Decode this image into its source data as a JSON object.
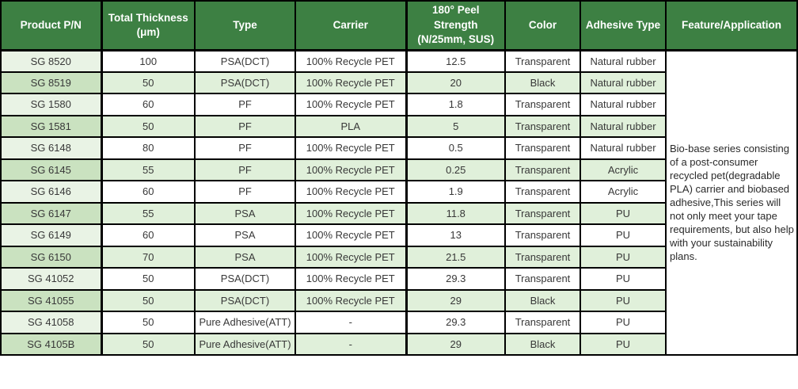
{
  "colors": {
    "header_bg": "#3d8043",
    "header_text": "#ffffff",
    "border": "#000000",
    "body_text": "#383838",
    "feature_text": "#2a2a2a",
    "row_odd_bg": "#ffffff",
    "row_even_bg": "#e0f0da",
    "pn_odd_bg": "#e9f3e5",
    "pn_even_bg": "#cae2c0"
  },
  "table": {
    "columns": [
      {
        "key": "pn",
        "label": "Product P/N"
      },
      {
        "key": "thickness",
        "label": "Total Thickness\n(μm)"
      },
      {
        "key": "type",
        "label": "Type"
      },
      {
        "key": "carrier",
        "label": "Carrier"
      },
      {
        "key": "peel",
        "label": "180° Peel\nStrength\n(N/25mm, SUS)"
      },
      {
        "key": "color",
        "label": "Color"
      },
      {
        "key": "adhesive",
        "label": "Adhesive Type"
      },
      {
        "key": "feature",
        "label": "Feature/Application"
      }
    ],
    "rows": [
      {
        "pn": "SG 8520",
        "thickness": "100",
        "type": "PSA(DCT)",
        "carrier": "100% Recycle PET",
        "peel": "12.5",
        "color": "Transparent",
        "adhesive": "Natural rubber"
      },
      {
        "pn": "SG 8519",
        "thickness": "50",
        "type": "PSA(DCT)",
        "carrier": "100% Recycle PET",
        "peel": "20",
        "color": "Black",
        "adhesive": "Natural rubber"
      },
      {
        "pn": "SG 1580",
        "thickness": "60",
        "type": "PF",
        "carrier": "100% Recycle PET",
        "peel": "1.8",
        "color": "Transparent",
        "adhesive": "Natural rubber"
      },
      {
        "pn": "SG 1581",
        "thickness": "50",
        "type": "PF",
        "carrier": "PLA",
        "peel": "5",
        "color": "Transparent",
        "adhesive": "Natural rubber"
      },
      {
        "pn": "SG 6148",
        "thickness": "80",
        "type": "PF",
        "carrier": "100% Recycle PET",
        "peel": "0.5",
        "color": "Transparent",
        "adhesive": "Natural rubber"
      },
      {
        "pn": "SG 6145",
        "thickness": "55",
        "type": "PF",
        "carrier": "100% Recycle PET",
        "peel": "0.25",
        "color": "Transparent",
        "adhesive": "Acrylic"
      },
      {
        "pn": "SG 6146",
        "thickness": "60",
        "type": "PF",
        "carrier": "100% Recycle PET",
        "peel": "1.9",
        "color": "Transparent",
        "adhesive": "Acrylic"
      },
      {
        "pn": "SG 6147",
        "thickness": "55",
        "type": "PSA",
        "carrier": "100% Recycle PET",
        "peel": "11.8",
        "color": "Transparent",
        "adhesive": "PU"
      },
      {
        "pn": "SG 6149",
        "thickness": "60",
        "type": "PSA",
        "carrier": "100% Recycle PET",
        "peel": "13",
        "color": "Transparent",
        "adhesive": "PU"
      },
      {
        "pn": "SG 6150",
        "thickness": "70",
        "type": "PSA",
        "carrier": "100% Recycle PET",
        "peel": "21.5",
        "color": "Transparent",
        "adhesive": "PU"
      },
      {
        "pn": "SG 41052",
        "thickness": "50",
        "type": "PSA(DCT)",
        "carrier": "100% Recycle PET",
        "peel": "29.3",
        "color": "Transparent",
        "adhesive": "PU"
      },
      {
        "pn": "SG 41055",
        "thickness": "50",
        "type": "PSA(DCT)",
        "carrier": "100% Recycle PET",
        "peel": "29",
        "color": "Black",
        "adhesive": "PU"
      },
      {
        "pn": "SG 41058",
        "thickness": "50",
        "type": "Pure Adhesive(ATT)",
        "carrier": "-",
        "peel": "29.3",
        "color": "Transparent",
        "adhesive": "PU"
      },
      {
        "pn": "SG 4105B",
        "thickness": "50",
        "type": "Pure Adhesive(ATT)",
        "carrier": "-",
        "peel": "29",
        "color": "Black",
        "adhesive": "PU"
      }
    ],
    "feature_text": "Bio-base series consisting of a post-consumer recycled pet(degradable PLA) carrier and  biobased adhesive,This series will not only meet your tape requirements, but also help with your sustainability plans."
  }
}
